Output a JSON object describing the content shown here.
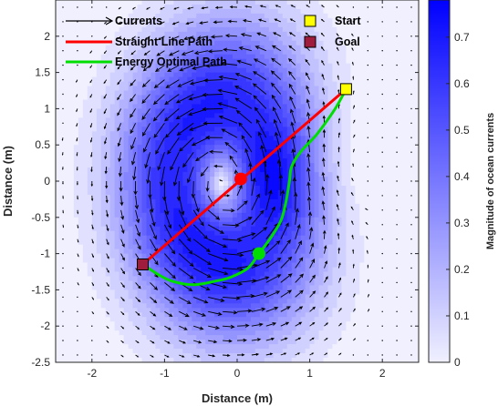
{
  "chart_data": {
    "type": "contour",
    "title": "",
    "xlabel": "Distance (m)",
    "ylabel": "Distance (m)",
    "xlim": [
      -2.5,
      2.5
    ],
    "ylim": [
      -2.5,
      2.5
    ],
    "xticks": [
      -2,
      -1,
      0,
      1,
      2
    ],
    "yticks": [
      -2.5,
      -2,
      -1.5,
      -1,
      -0.5,
      0,
      0.5,
      1,
      1.5,
      2
    ],
    "xtick_labels": [
      "-2",
      "-1",
      "0",
      "1",
      "2"
    ],
    "ytick_labels": [
      "-2.5",
      "-2",
      "-1.5",
      "-1",
      "-0.5",
      "0",
      "0.5",
      "1",
      "1.5",
      "2"
    ],
    "grid": false,
    "legend_position": "top-left",
    "legend": [
      {
        "label": "Currents",
        "kind": "quiver",
        "color": "#000000"
      },
      {
        "label": "Straight Line Path",
        "kind": "line",
        "color": "#ff0000"
      },
      {
        "label": "Energy Optimal Path",
        "kind": "line",
        "color": "#00dd00"
      },
      {
        "label": "Start",
        "kind": "marker",
        "color": "#ffff00"
      },
      {
        "label": "Goal",
        "kind": "marker",
        "color": "#a01c3c"
      }
    ],
    "colorbar": {
      "label": "Magnitude of ocean currents",
      "lim": [
        0,
        0.78
      ],
      "ticks": [
        0,
        0.1,
        0.2,
        0.3,
        0.4,
        0.5,
        0.6,
        0.7
      ],
      "tick_labels": [
        "0",
        "0.1",
        "0.2",
        "0.3",
        "0.4",
        "0.5",
        "0.6",
        "0.7"
      ],
      "low_color": "#f0f0ff",
      "high_color": "#0000ff"
    },
    "field": {
      "description": "Double-gyre style vortex current field",
      "vortex_center": [
        -0.05,
        0.0
      ],
      "peak_magnitude": 0.78
    },
    "series": [
      {
        "name": "Straight Line Path",
        "color": "#ff0000",
        "x": [
          1.5,
          -1.3
        ],
        "y": [
          1.27,
          -1.15
        ],
        "marker_point": [
          0.05,
          0.03
        ]
      },
      {
        "name": "Energy Optimal Path",
        "color": "#00dd00",
        "x": [
          1.5,
          1.35,
          1.1,
          0.87,
          0.75,
          0.72,
          0.67,
          0.6,
          0.45,
          0.3,
          0.15,
          -0.1,
          -0.3,
          -0.6,
          -0.9,
          -1.1,
          -1.3
        ],
        "y": [
          1.27,
          1.0,
          0.65,
          0.4,
          0.2,
          0.0,
          -0.3,
          -0.55,
          -0.8,
          -1.0,
          -1.2,
          -1.33,
          -1.38,
          -1.43,
          -1.38,
          -1.28,
          -1.15
        ],
        "marker_point": [
          0.3,
          -1.0
        ]
      }
    ],
    "start": [
      1.5,
      1.27
    ],
    "goal": [
      -1.3,
      -1.15
    ]
  }
}
